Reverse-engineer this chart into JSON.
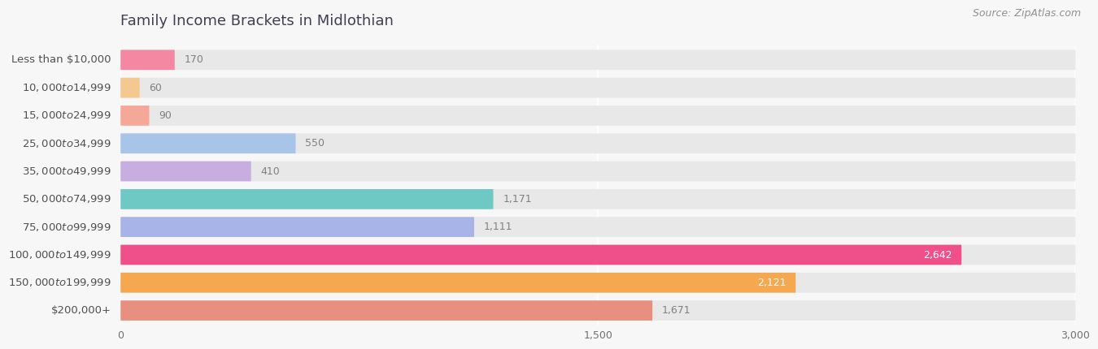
{
  "title": "Family Income Brackets in Midlothian",
  "source": "Source: ZipAtlas.com",
  "categories": [
    "Less than $10,000",
    "$10,000 to $14,999",
    "$15,000 to $24,999",
    "$25,000 to $34,999",
    "$35,000 to $49,999",
    "$50,000 to $74,999",
    "$75,000 to $99,999",
    "$100,000 to $149,999",
    "$150,000 to $199,999",
    "$200,000+"
  ],
  "values": [
    170,
    60,
    90,
    550,
    410,
    1171,
    1111,
    2642,
    2121,
    1671
  ],
  "bar_colors": [
    "#f487a2",
    "#f5c890",
    "#f5a898",
    "#a8c4e8",
    "#c8aee0",
    "#6ec8c4",
    "#a8b4e8",
    "#f0508a",
    "#f5a850",
    "#e89080"
  ],
  "xlim": [
    0,
    3000
  ],
  "xticks": [
    0,
    1500,
    3000
  ],
  "xticklabels": [
    "0",
    "1,500",
    "3,000"
  ],
  "background_color": "#f7f7f7",
  "bar_bg_color": "#e8e8e8",
  "title_color": "#404050",
  "label_color": "#505050",
  "tick_color": "#707070",
  "value_color_inside": "#ffffff",
  "value_color_outside": "#808080",
  "source_color": "#909090",
  "title_fontsize": 13,
  "label_fontsize": 9.5,
  "value_fontsize": 9,
  "source_fontsize": 9,
  "tick_fontsize": 9
}
